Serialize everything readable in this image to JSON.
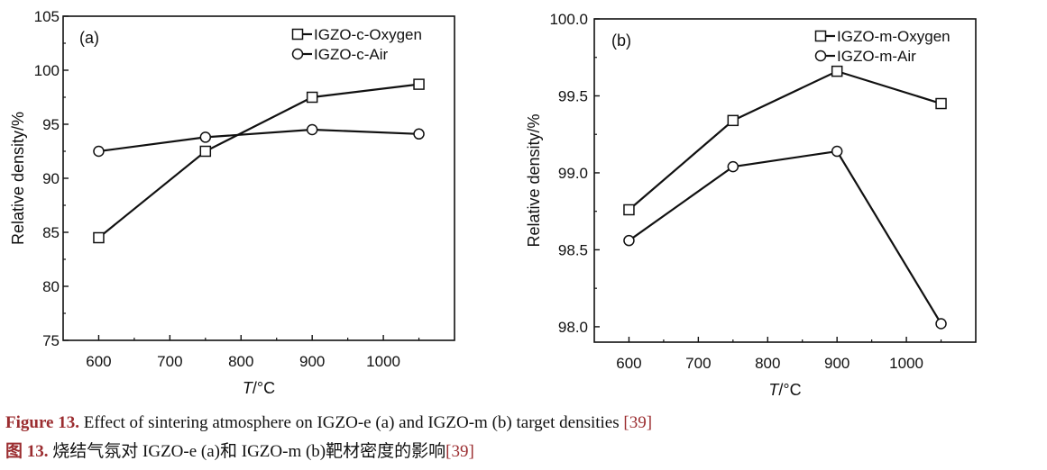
{
  "chart_data": [
    {
      "type": "line",
      "panel_label": "(a)",
      "xlabel_italic": "T",
      "xlabel_rest": "/°C",
      "ylabel": "Relative density/%",
      "x": [
        600,
        750,
        900,
        1050
      ],
      "xlim": [
        550,
        1100
      ],
      "ylim": [
        75,
        105
      ],
      "xticks": [
        600,
        700,
        800,
        900,
        1000
      ],
      "yticks": [
        75,
        80,
        85,
        90,
        95,
        100,
        105
      ],
      "ytick_labels": [
        "75",
        "80",
        "85",
        "90",
        "95",
        "100",
        "105"
      ],
      "grid": false,
      "legend_position": "top-right",
      "series": [
        {
          "name": "IGZO-c-Oxygen",
          "marker": "square",
          "values": [
            84.5,
            92.5,
            97.5,
            98.7
          ]
        },
        {
          "name": "IGZO-c-Air",
          "marker": "circle",
          "values": [
            92.5,
            93.8,
            94.5,
            94.1
          ]
        }
      ]
    },
    {
      "type": "line",
      "panel_label": "(b)",
      "xlabel_italic": "T",
      "xlabel_rest": "/°C",
      "ylabel": "Relative density/%",
      "x": [
        600,
        750,
        900,
        1050
      ],
      "xlim": [
        550,
        1100
      ],
      "ylim": [
        97.9,
        100.0
      ],
      "xticks": [
        600,
        700,
        800,
        900,
        1000
      ],
      "yticks": [
        98.0,
        98.5,
        99.0,
        99.5,
        100.0
      ],
      "ytick_labels": [
        "98.0",
        "98.5",
        "99.0",
        "99.5",
        "100.0"
      ],
      "grid": false,
      "legend_position": "top-right",
      "series": [
        {
          "name": "IGZO-m-Oxygen",
          "marker": "square",
          "values": [
            98.76,
            99.34,
            99.66,
            99.45
          ]
        },
        {
          "name": "IGZO-m-Air",
          "marker": "circle",
          "values": [
            98.56,
            99.04,
            99.14,
            98.02
          ]
        }
      ]
    }
  ],
  "caption": {
    "en_label": "Figure 13.",
    "en_text": " Effect of sintering atmosphere on IGZO-e (a) and IGZO-m (b) target densities ",
    "en_ref": "[39]",
    "zh_label": "图 13.",
    "zh_text": " 烧结气氛对 IGZO-e (a)和 IGZO-m (b)靶材密度的影响",
    "zh_ref": "[39]"
  },
  "colors": {
    "caption_accent": "#9b2d30",
    "line": "#111111"
  }
}
